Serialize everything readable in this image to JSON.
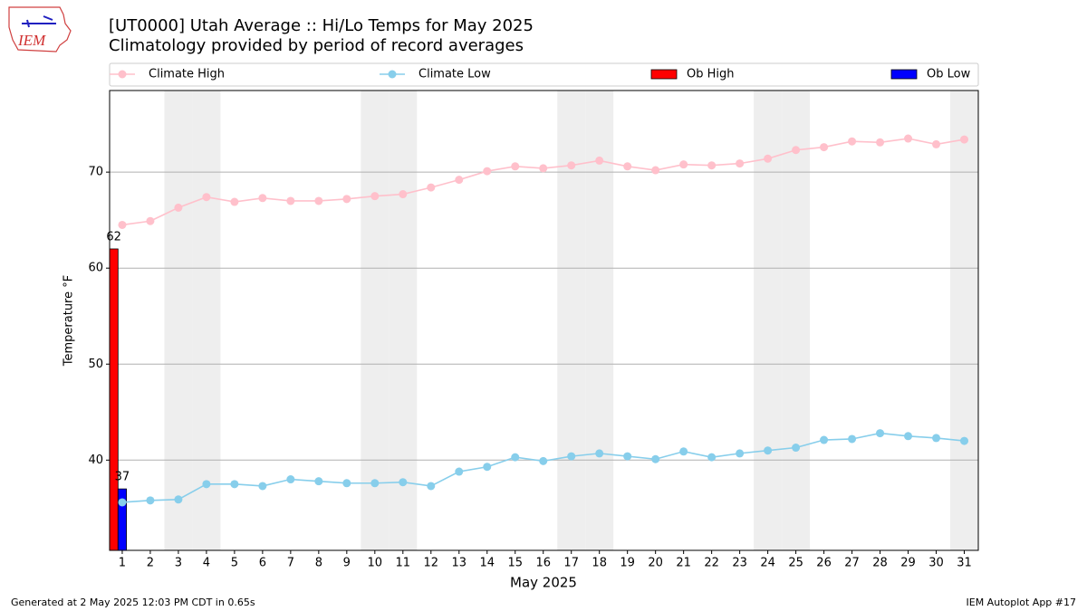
{
  "logo": "IEM",
  "footer": {
    "left": "Generated at 2 May 2025 12:03 PM CDT in 0.65s",
    "right": "IEM Autoplot App #17"
  },
  "chart_data": {
    "type": "line",
    "title": "[UT0000] Utah Average :: Hi/Lo Temps for May 2025",
    "subtitle": "Climatology provided by period of record averages",
    "xlabel": "May 2025",
    "ylabel": "Temperature °F",
    "xlim": [
      0.55,
      31.5
    ],
    "ylim": [
      30.6,
      78.5
    ],
    "xticks": [
      1,
      2,
      3,
      4,
      5,
      6,
      7,
      8,
      9,
      10,
      11,
      12,
      13,
      14,
      15,
      16,
      17,
      18,
      19,
      20,
      21,
      22,
      23,
      24,
      25,
      26,
      27,
      28,
      29,
      30,
      31
    ],
    "yticks": [
      40,
      50,
      60,
      70
    ],
    "grid": true,
    "shaded_days": [
      3,
      4,
      10,
      11,
      17,
      18,
      24,
      25,
      31
    ],
    "x": [
      1,
      2,
      3,
      4,
      5,
      6,
      7,
      8,
      9,
      10,
      11,
      12,
      13,
      14,
      15,
      16,
      17,
      18,
      19,
      20,
      21,
      22,
      23,
      24,
      25,
      26,
      27,
      28,
      29,
      30,
      31
    ],
    "series": [
      {
        "name": "Climate High",
        "kind": "line",
        "color": "#ffc0cb",
        "values": [
          64.5,
          64.9,
          66.3,
          67.4,
          66.9,
          67.3,
          67.0,
          67.0,
          67.2,
          67.5,
          67.7,
          68.4,
          69.2,
          70.1,
          70.6,
          70.4,
          70.7,
          71.2,
          70.6,
          70.2,
          70.8,
          70.7,
          70.9,
          71.4,
          72.3,
          72.6,
          73.2,
          73.1,
          73.5,
          72.9,
          73.4
        ]
      },
      {
        "name": "Climate Low",
        "kind": "line",
        "color": "#87ceeb",
        "values": [
          35.6,
          35.8,
          35.9,
          37.5,
          37.5,
          37.3,
          38.0,
          37.8,
          37.6,
          37.6,
          37.7,
          37.3,
          38.8,
          39.3,
          40.3,
          39.9,
          40.4,
          40.7,
          40.4,
          40.1,
          40.9,
          40.3,
          40.7,
          41.0,
          41.3,
          42.1,
          42.2,
          42.8,
          42.5,
          42.3,
          42.0
        ]
      },
      {
        "name": "Ob High",
        "kind": "bar",
        "color": "#ff0000",
        "x": [
          1
        ],
        "values": [
          62
        ]
      },
      {
        "name": "Ob Low",
        "kind": "bar",
        "color": "#0000ff",
        "x": [
          1
        ],
        "values": [
          37
        ]
      }
    ]
  }
}
